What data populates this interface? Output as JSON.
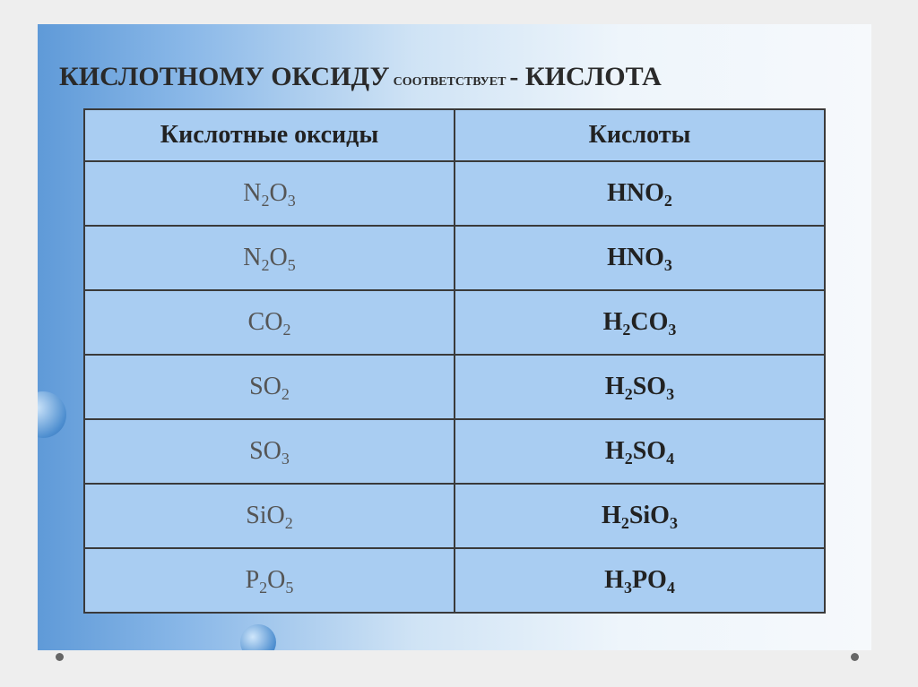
{
  "title": {
    "part1": "КИСЛОТНОМУ ОКСИДУ",
    "part2": "соответствует",
    "part3": "- КИСЛОТА"
  },
  "table": {
    "headers": [
      "Кислотные оксиды",
      "Кислоты"
    ],
    "rows": [
      {
        "oxide": [
          [
            "N",
            ""
          ],
          [
            "2",
            "sub"
          ],
          [
            "O",
            ""
          ],
          [
            "3",
            "sub"
          ]
        ],
        "acid": [
          [
            "HNO",
            ""
          ],
          [
            "2",
            "sub"
          ]
        ]
      },
      {
        "oxide": [
          [
            "N",
            ""
          ],
          [
            "2",
            "sub"
          ],
          [
            "O",
            ""
          ],
          [
            "5",
            "sub"
          ]
        ],
        "acid": [
          [
            "HNO",
            ""
          ],
          [
            "3",
            "sub"
          ]
        ]
      },
      {
        "oxide": [
          [
            "CO",
            ""
          ],
          [
            "2",
            "sub"
          ]
        ],
        "acid": [
          [
            "H",
            ""
          ],
          [
            "2",
            "sub"
          ],
          [
            "CO",
            ""
          ],
          [
            "3",
            "sub"
          ]
        ]
      },
      {
        "oxide": [
          [
            "SO",
            ""
          ],
          [
            "2",
            "sub"
          ]
        ],
        "acid": [
          [
            "H",
            ""
          ],
          [
            "2",
            "sub"
          ],
          [
            "SO",
            ""
          ],
          [
            "3",
            "sub"
          ]
        ]
      },
      {
        "oxide": [
          [
            "SO",
            ""
          ],
          [
            "3",
            "sub"
          ]
        ],
        "acid": [
          [
            "H",
            ""
          ],
          [
            "2",
            "sub"
          ],
          [
            "SO",
            ""
          ],
          [
            "4",
            "sub"
          ]
        ]
      },
      {
        "oxide": [
          [
            "SiO",
            ""
          ],
          [
            "2",
            "sub"
          ]
        ],
        "acid": [
          [
            "H",
            ""
          ],
          [
            "2",
            "sub"
          ],
          [
            "SiO",
            ""
          ],
          [
            "3",
            "sub"
          ]
        ]
      },
      {
        "oxide": [
          [
            "P",
            ""
          ],
          [
            "2",
            "sub"
          ],
          [
            "O",
            ""
          ],
          [
            "5",
            "sub"
          ]
        ],
        "acid": [
          [
            "H",
            ""
          ],
          [
            "3",
            "sub"
          ],
          [
            "PO",
            ""
          ],
          [
            "4",
            "sub"
          ]
        ]
      }
    ]
  },
  "colors": {
    "table_fill": "#a9cdf2",
    "border": "#3a3a3a"
  }
}
